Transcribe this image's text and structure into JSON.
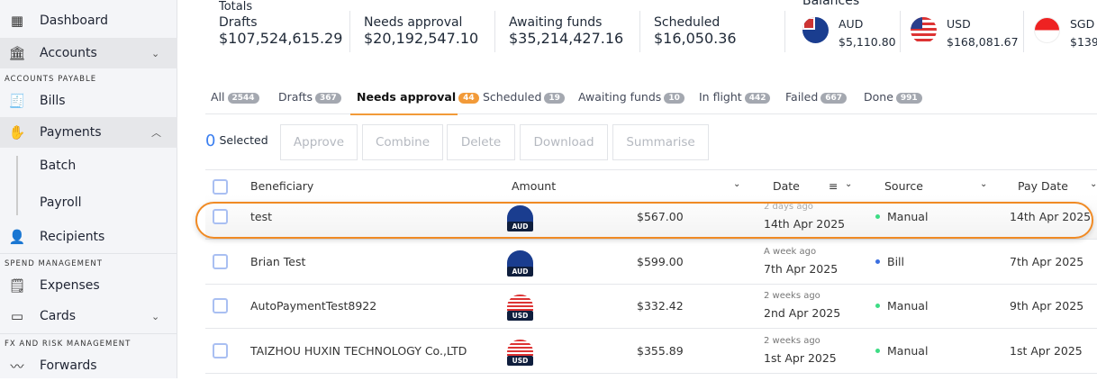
{
  "sidebar": {
    "dashboard": "Dashboard",
    "accounts": "Accounts",
    "section_ap": "ACCOUNTS PAYABLE",
    "bills": "Bills",
    "payments": "Payments",
    "batch": "Batch",
    "payroll": "Payroll",
    "recipients": "Recipients",
    "section_spend": "SPEND MANAGEMENT",
    "expenses": "Expenses",
    "cards": "Cards",
    "section_fx": "FX AND RISK MANAGEMENT",
    "forwards": "Forwards"
  },
  "totals": {
    "title": "Totals",
    "items": [
      {
        "label": "Drafts",
        "value": "$107,524,615.29"
      },
      {
        "label": "Needs approval",
        "value": "$20,192,547.10"
      },
      {
        "label": "Awaiting funds",
        "value": "$35,214,427.16"
      },
      {
        "label": "Scheduled",
        "value": "$16,050.36"
      }
    ]
  },
  "balances": {
    "title": "Balances",
    "items": [
      {
        "currency": "AUD",
        "value": "$5,110.80"
      },
      {
        "currency": "USD",
        "value": "$168,081.67"
      },
      {
        "currency": "SGD",
        "value": "$139"
      }
    ]
  },
  "tabs": [
    {
      "label": "All",
      "count": "2544"
    },
    {
      "label": "Drafts",
      "count": "367"
    },
    {
      "label": "Needs approval",
      "count": "44"
    },
    {
      "label": "Scheduled",
      "count": "19"
    },
    {
      "label": "Awaiting funds",
      "count": "10"
    },
    {
      "label": "In flight",
      "count": "442"
    },
    {
      "label": "Failed",
      "count": "667"
    },
    {
      "label": "Done",
      "count": "991"
    }
  ],
  "active_tab": "Needs approval",
  "selection": {
    "count": "0",
    "label": "Selected"
  },
  "actions": [
    "Approve",
    "Combine",
    "Delete",
    "Download",
    "Summarise"
  ],
  "columns": [
    "Beneficiary",
    "Amount",
    "Date",
    "Source",
    "Pay Date"
  ],
  "colors": {
    "accent": "#f29a38",
    "manual": "#3ddc84",
    "bill": "#3b6fe0"
  },
  "rows": [
    {
      "beneficiary": "test",
      "currency": "AUD",
      "amount": "$567.00",
      "ago": "2 days ago",
      "date": "14th Apr 2025",
      "source": "Manual",
      "pay_date": "14th Apr 2025"
    },
    {
      "beneficiary": "Brian Test",
      "currency": "AUD",
      "amount": "$599.00",
      "ago": "A week ago",
      "date": "7th Apr 2025",
      "source": "Bill",
      "pay_date": "7th Apr 2025"
    },
    {
      "beneficiary": "AutoPaymentTest8922",
      "currency": "USD",
      "amount": "$332.42",
      "ago": "2 weeks ago",
      "date": "2nd Apr 2025",
      "source": "Manual",
      "pay_date": "9th Apr 2025"
    },
    {
      "beneficiary": "TAIZHOU HUXIN TECHNOLOGY Co.,LTD",
      "currency": "USD",
      "amount": "$355.89",
      "ago": "2 weeks ago",
      "date": "1st Apr 2025",
      "source": "Manual",
      "pay_date": "1st Apr 2025"
    }
  ]
}
